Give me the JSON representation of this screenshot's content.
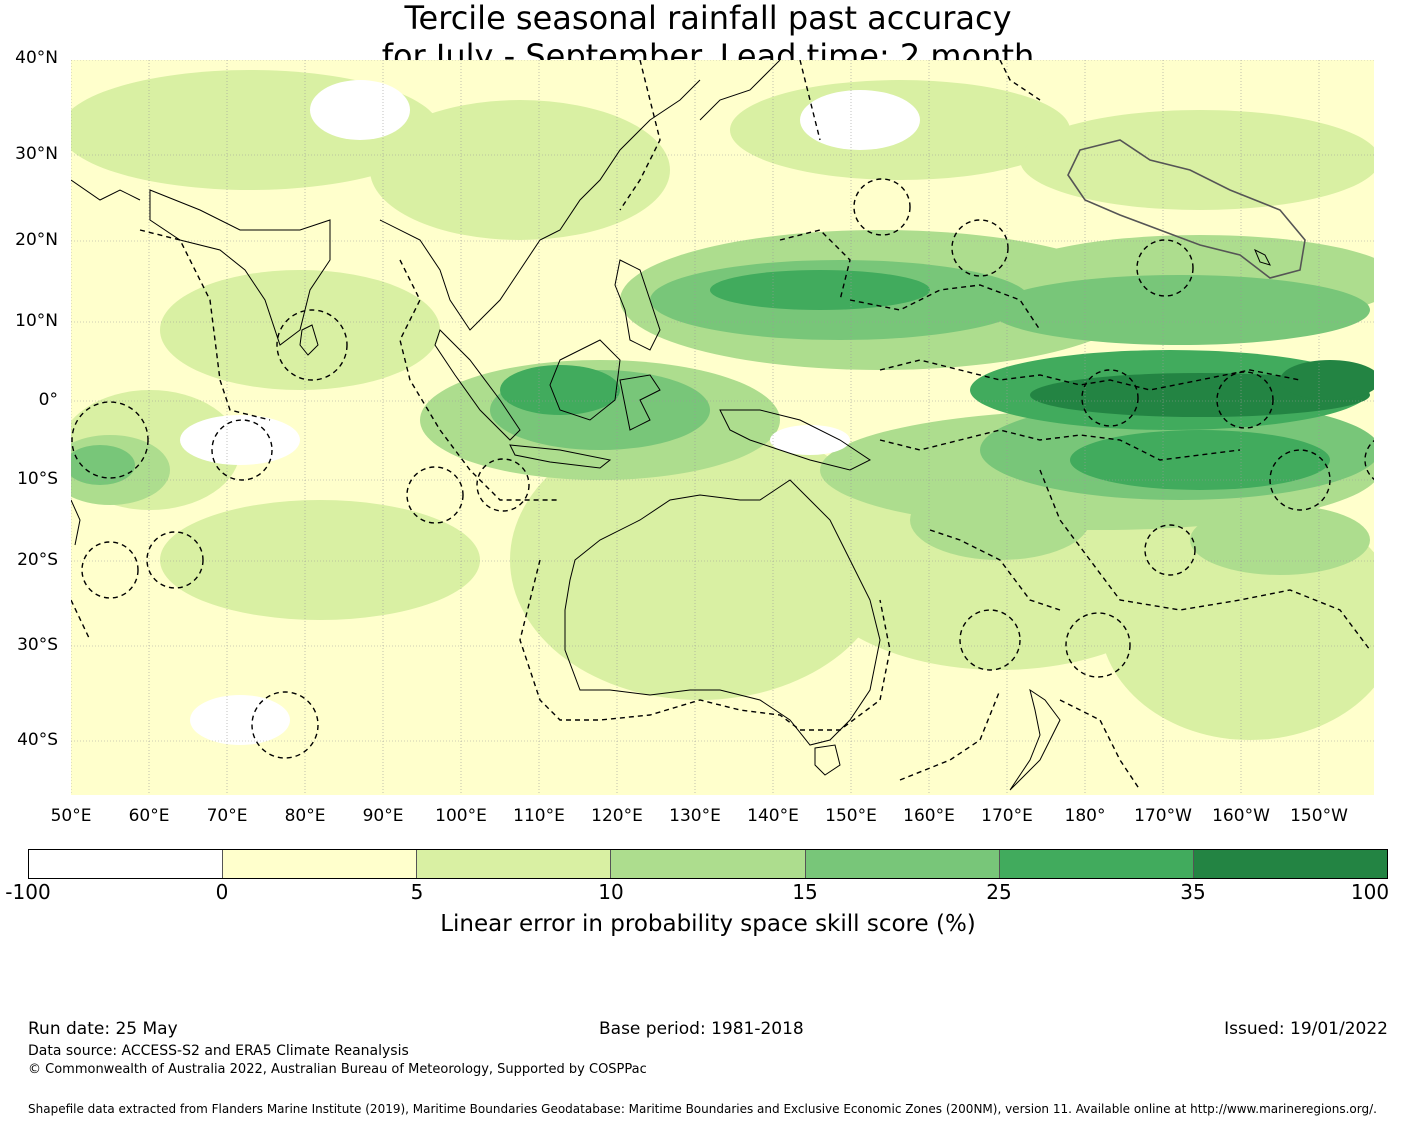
{
  "title": {
    "line1": "Tercile seasonal rainfall past accuracy",
    "line2": "for July - September. Lead time: 2 month"
  },
  "map": {
    "lat_labels": [
      "40°N",
      "30°N",
      "20°N",
      "10°N",
      "0°",
      "10°S",
      "20°S",
      "30°S",
      "40°S"
    ],
    "lon_labels": [
      "50°E",
      "60°E",
      "70°E",
      "80°E",
      "90°E",
      "100°E",
      "110°E",
      "120°E",
      "130°E",
      "140°E",
      "150°E",
      "160°E",
      "170°E",
      "180°",
      "170°W",
      "160°W",
      "150°W"
    ],
    "lat_range": [
      -47,
      40
    ],
    "lon_range": [
      50,
      217
    ],
    "gridlines": true,
    "overlay": "maritime boundaries (EEZ) dashed, coastlines solid"
  },
  "colorbar": {
    "label": "Linear error in probability space skill score (%)",
    "ticks": [
      "-100",
      "0",
      "5",
      "10",
      "15",
      "25",
      "35",
      "100"
    ],
    "colors": [
      "#ffffff",
      "#ffffcc",
      "#d9f0a3",
      "#addd8e",
      "#78c679",
      "#41ab5d",
      "#238443"
    ]
  },
  "footer": {
    "run_date": "Run date: 25 May",
    "base_period": "Base period: 1981-2018",
    "issued": "Issued: 19/01/2022",
    "data_source": "Data source: ACCESS-S2 and ERA5 Climate Reanalysis",
    "copyright": "© Commonwealth of Australia 2022, Australian Bureau of Meteorology, Supported by COSPPac",
    "shapefile": "Shapefile data extracted from Flanders Marine Institute (2019), Maritime Boundaries Geodatabase: Maritime Boundaries and Exclusive Economic Zones (200NM), version 11. Available online at http://www.marineregions.org/."
  }
}
